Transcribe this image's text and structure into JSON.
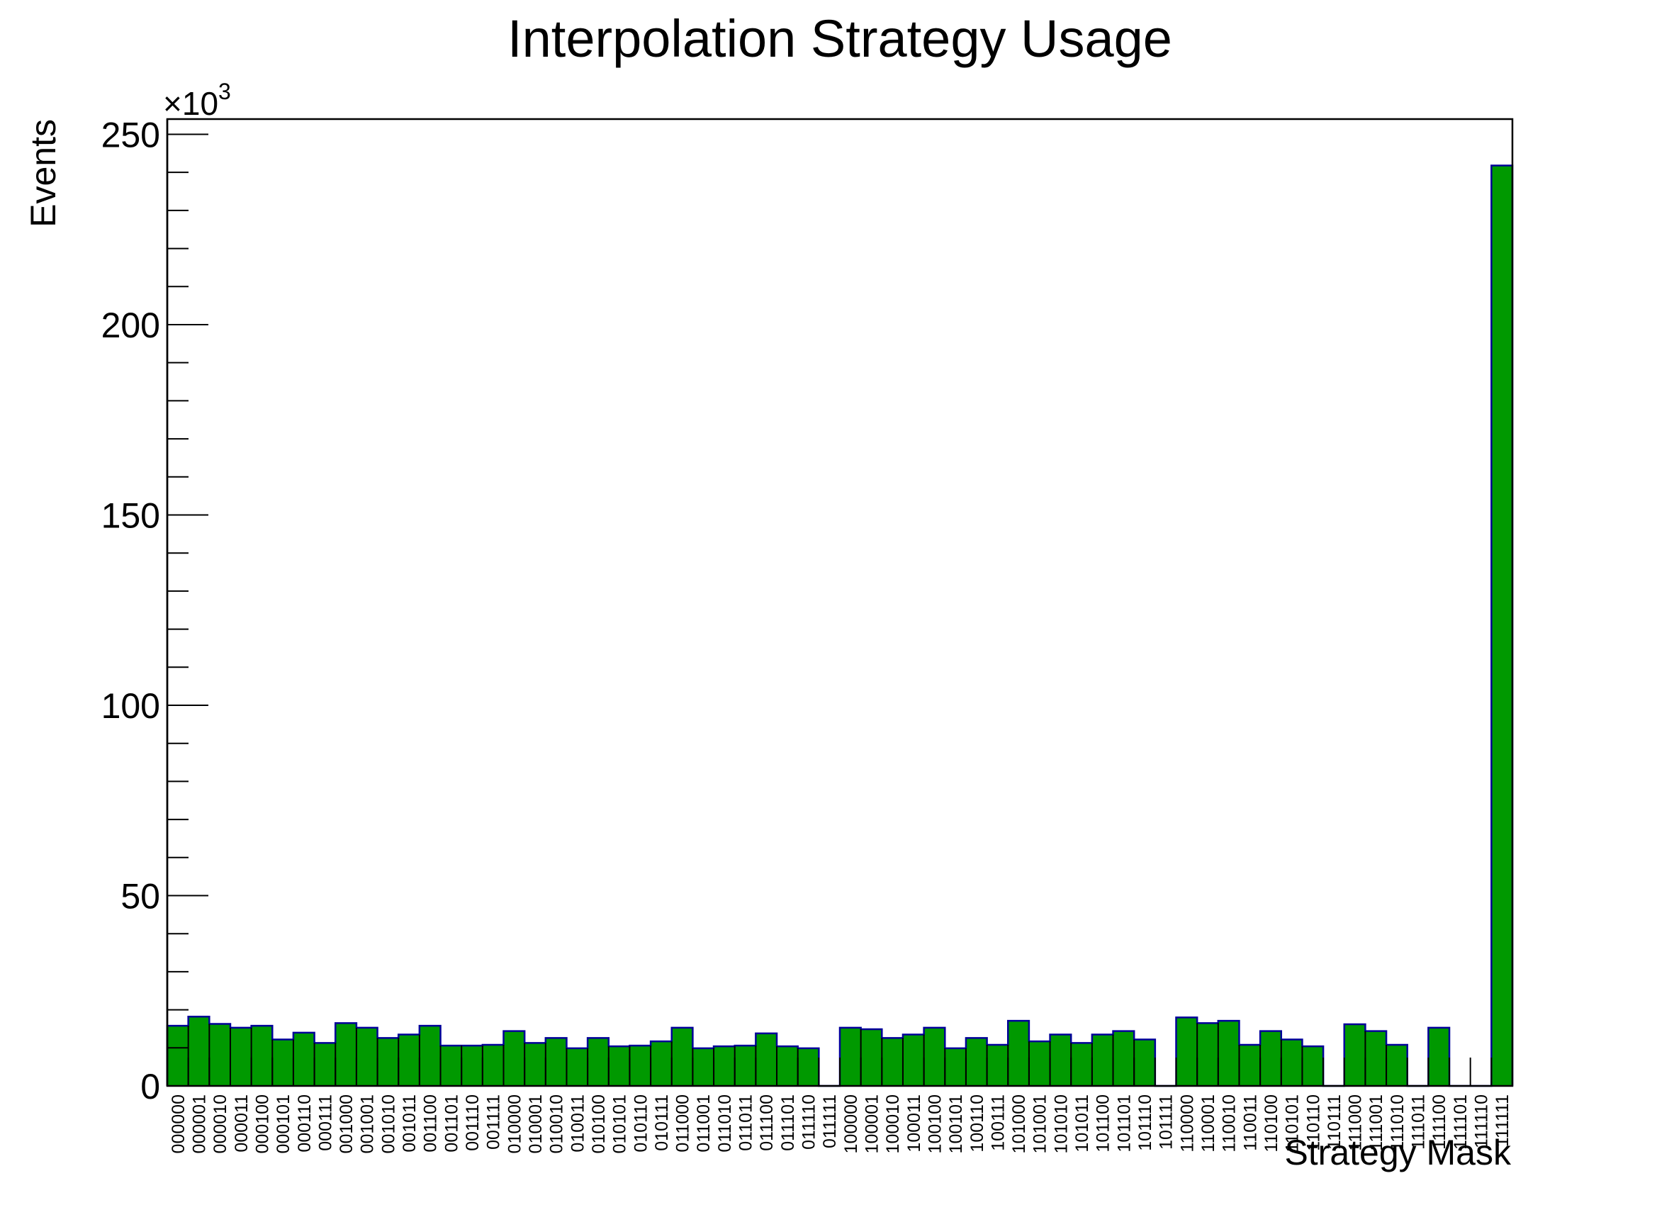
{
  "chart_data": {
    "type": "bar",
    "title": "Interpolation Strategy Usage",
    "xlabel": "Strategy Mask",
    "ylabel": "Events",
    "y_multiplier": "×10",
    "y_multiplier_exponent": "3",
    "ylim": [
      0,
      254
    ],
    "yticks": [
      "0",
      "50",
      "100",
      "150",
      "200",
      "250"
    ],
    "ytick_values": [
      0,
      50,
      100,
      150,
      200,
      250
    ],
    "grid": false,
    "legend": "none",
    "colors": {
      "fill": "#009900",
      "edge": "#000099",
      "axis": "#000000"
    },
    "categories": [
      "000000",
      "000001",
      "000010",
      "000011",
      "000100",
      "000101",
      "000110",
      "000111",
      "001000",
      "001001",
      "001010",
      "001011",
      "001100",
      "001101",
      "001110",
      "001111",
      "010000",
      "010001",
      "010010",
      "010011",
      "010100",
      "010101",
      "010110",
      "010111",
      "011000",
      "011001",
      "011010",
      "011011",
      "011100",
      "011101",
      "011110",
      "011111",
      "100000",
      "100001",
      "100010",
      "100011",
      "100100",
      "100101",
      "100110",
      "100111",
      "101000",
      "101001",
      "101010",
      "101011",
      "101100",
      "101101",
      "101110",
      "101111",
      "110000",
      "110001",
      "110010",
      "110011",
      "110100",
      "110101",
      "110110",
      "110111",
      "111000",
      "111001",
      "111010",
      "111011",
      "111100",
      "111101",
      "111110",
      "111111"
    ],
    "values": [
      15.8,
      18.2,
      16.3,
      15.3,
      15.8,
      12.2,
      14.0,
      11.3,
      16.5,
      15.3,
      12.6,
      13.5,
      15.8,
      10.6,
      10.6,
      10.8,
      14.4,
      11.3,
      12.6,
      9.9,
      12.6,
      10.4,
      10.6,
      11.7,
      15.3,
      9.9,
      10.4,
      10.6,
      13.8,
      10.4,
      9.9,
      0,
      15.3,
      14.9,
      12.6,
      13.5,
      15.3,
      9.9,
      12.6,
      10.8,
      17.1,
      11.7,
      13.5,
      11.3,
      13.5,
      14.4,
      12.2,
      0,
      18.0,
      16.5,
      17.1,
      10.8,
      14.4,
      12.2,
      10.4,
      0,
      16.2,
      14.4,
      10.8,
      0,
      15.3,
      0,
      0,
      241.8
    ]
  }
}
